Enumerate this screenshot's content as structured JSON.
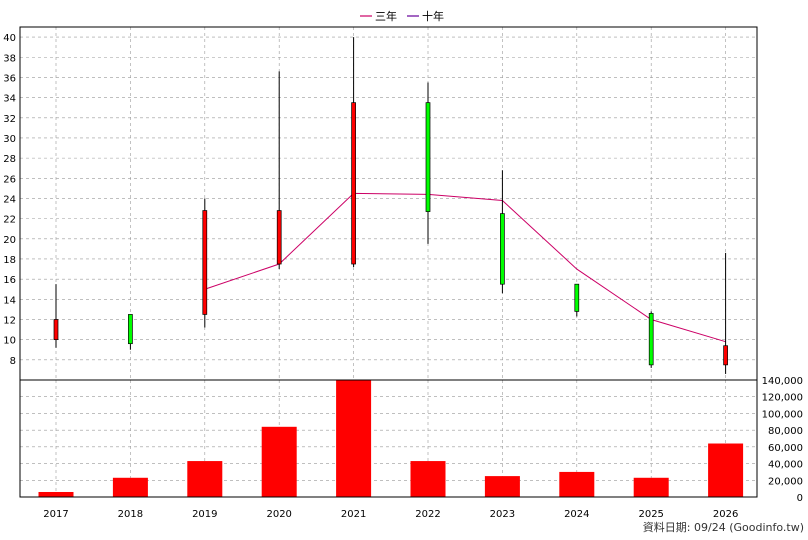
{
  "legend": {
    "items": [
      {
        "label": "三年",
        "color": "#cc0066"
      },
      {
        "label": "十年",
        "color": "#660099"
      }
    ]
  },
  "footer": {
    "text": "資料日期: 09/24  (Goodinfo.tw)"
  },
  "colors": {
    "up_candle": "#ff0000",
    "down_candle": "#00ff00",
    "volume_bar": "#ff0000",
    "line_three_year": "#cc0066",
    "grid": "#999999"
  },
  "chart_data": [
    {
      "type": "candlestick",
      "x": [
        "2017",
        "2018",
        "2019",
        "2020",
        "2021",
        "2022",
        "2023",
        "2024",
        "2025",
        "2026"
      ],
      "ylim": [
        6,
        41
      ],
      "yticks": [
        8,
        10,
        12,
        14,
        16,
        18,
        20,
        22,
        24,
        26,
        28,
        30,
        32,
        34,
        36,
        38,
        40
      ],
      "grid": true,
      "candles": [
        {
          "x": "2017",
          "open": 10.0,
          "high": 15.5,
          "low": 9.2,
          "close": 12.0
        },
        {
          "x": "2018",
          "open": 12.5,
          "high": 12.5,
          "low": 9.0,
          "close": 9.6
        },
        {
          "x": "2019",
          "open": 12.5,
          "high": 24.0,
          "low": 11.2,
          "close": 22.8
        },
        {
          "x": "2020",
          "open": 17.5,
          "high": 36.6,
          "low": 17.0,
          "close": 22.8
        },
        {
          "x": "2021",
          "open": 17.5,
          "high": 40.0,
          "low": 17.2,
          "close": 33.5
        },
        {
          "x": "2022",
          "open": 33.5,
          "high": 35.5,
          "low": 19.5,
          "close": 22.7
        },
        {
          "x": "2023",
          "open": 22.5,
          "high": 26.8,
          "low": 14.6,
          "close": 15.5
        },
        {
          "x": "2024",
          "open": 15.5,
          "high": 15.5,
          "low": 12.3,
          "close": 12.8
        },
        {
          "x": "2025",
          "open": 12.6,
          "high": 12.8,
          "low": 7.2,
          "close": 7.5
        },
        {
          "x": "2026",
          "open": 7.5,
          "high": 18.6,
          "low": 6.6,
          "close": 9.4
        }
      ],
      "series": [
        {
          "name": "三年",
          "x": [
            "2019",
            "2020",
            "2021",
            "2022",
            "2023",
            "2024",
            "2025",
            "2026"
          ],
          "values": [
            15.0,
            17.5,
            24.5,
            24.4,
            23.8,
            17.0,
            12.0,
            9.8
          ]
        }
      ]
    },
    {
      "type": "bar",
      "categories": [
        "2017",
        "2018",
        "2019",
        "2020",
        "2021",
        "2022",
        "2023",
        "2024",
        "2025",
        "2026"
      ],
      "values": [
        6000,
        23000,
        43000,
        84000,
        140000,
        43000,
        25000,
        30000,
        23000,
        64000
      ],
      "ylim": [
        0,
        140000
      ],
      "yticks": [
        0,
        20000,
        40000,
        60000,
        80000,
        100000,
        120000,
        140000
      ],
      "ytick_labels": [
        "0",
        "20,000",
        "40,000",
        "60,000",
        "80,000",
        "100,000",
        "120,000",
        "140,000"
      ]
    }
  ]
}
